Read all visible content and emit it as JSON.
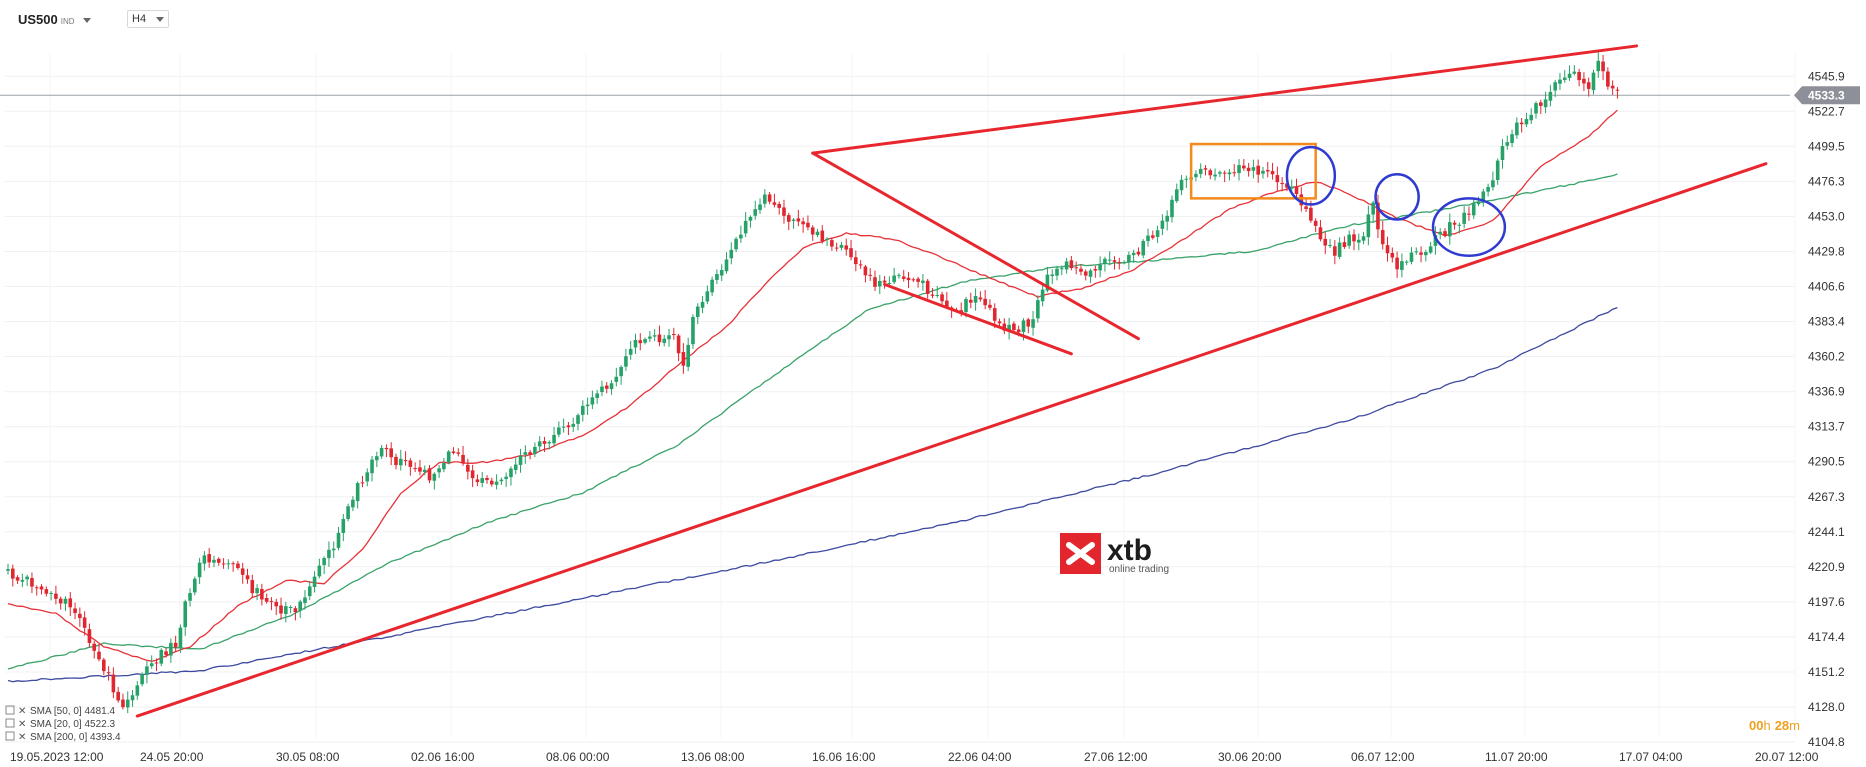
{
  "toolbar": {
    "symbol": "US500",
    "symbol_type": "IND",
    "timeframe": "H4"
  },
  "logo": {
    "brand": "xtb",
    "tagline": "online trading"
  },
  "timer": {
    "hours": "00",
    "h_unit": "h",
    "minutes": "28",
    "m_unit": "m"
  },
  "colors": {
    "up": "#26a269",
    "down": "#e0262f",
    "sma20": "#e63238",
    "sma50": "#3aa26a",
    "sma200": "#3d4aa0",
    "trendline": "#e8262e",
    "box": "#f28a1c",
    "circle": "#2e3ad0",
    "price_tag": "#8e9099"
  },
  "chart_data": {
    "type": "line",
    "instrument": "US500",
    "timeframe": "H4",
    "ylim": [
      4104.8,
      4560
    ],
    "y_ticks": [
      4545.9,
      4522.7,
      4499.5,
      4476.3,
      4453.0,
      4429.8,
      4406.6,
      4383.4,
      4360.2,
      4336.9,
      4313.7,
      4290.5,
      4267.3,
      4244.1,
      4220.9,
      4197.6,
      4174.4,
      4151.2,
      4128.0,
      4104.8
    ],
    "x_ticks": [
      "19.05.2023  12:00",
      "24.05  20:00",
      "30.05  08:00",
      "02.06  16:00",
      "08.06  00:00",
      "13.06  08:00",
      "16.06  16:00",
      "22.06  04:00",
      "27.06  12:00",
      "30.06  20:00",
      "06.07  12:00",
      "11.07  20:00",
      "17.07  04:00",
      "20.07  12:00"
    ],
    "last_price": "4533.3",
    "legend": [
      {
        "label": "SMA [50, 0]",
        "value": "4481.4"
      },
      {
        "label": "SMA [20, 0]",
        "value": "4522.3"
      },
      {
        "label": "SMA [200, 0]",
        "value": "4393.4"
      }
    ],
    "price_anchors": [
      [
        0,
        4218
      ],
      [
        4,
        4212
      ],
      [
        8,
        4202
      ],
      [
        12,
        4198
      ],
      [
        15,
        4185
      ],
      [
        18,
        4162
      ],
      [
        21,
        4148
      ],
      [
        24,
        4126
      ],
      [
        27,
        4145
      ],
      [
        30,
        4158
      ],
      [
        33,
        4165
      ],
      [
        35,
        4170
      ],
      [
        37,
        4196
      ],
      [
        39,
        4213
      ],
      [
        41,
        4228
      ],
      [
        44,
        4222
      ],
      [
        47,
        4225
      ],
      [
        50,
        4210
      ],
      [
        53,
        4200
      ],
      [
        56,
        4194
      ],
      [
        60,
        4190
      ],
      [
        63,
        4205
      ],
      [
        66,
        4228
      ],
      [
        69,
        4240
      ],
      [
        72,
        4268
      ],
      [
        75,
        4285
      ],
      [
        78,
        4300
      ],
      [
        80,
        4292
      ],
      [
        84,
        4288
      ],
      [
        88,
        4280
      ],
      [
        91,
        4292
      ],
      [
        94,
        4298
      ],
      [
        97,
        4282
      ],
      [
        100,
        4275
      ],
      [
        103,
        4280
      ],
      [
        106,
        4290
      ],
      [
        110,
        4298
      ],
      [
        114,
        4308
      ],
      [
        118,
        4318
      ],
      [
        122,
        4332
      ],
      [
        126,
        4342
      ],
      [
        130,
        4366
      ],
      [
        133,
        4372
      ],
      [
        136,
        4373
      ],
      [
        139,
        4376
      ],
      [
        141,
        4352
      ],
      [
        143,
        4384
      ],
      [
        146,
        4404
      ],
      [
        149,
        4420
      ],
      [
        152,
        4438
      ],
      [
        155,
        4455
      ],
      [
        158,
        4466
      ],
      [
        161,
        4460
      ],
      [
        163,
        4452
      ],
      [
        166,
        4445
      ],
      [
        169,
        4440
      ],
      [
        172,
        4436
      ],
      [
        175,
        4432
      ],
      [
        178,
        4420
      ],
      [
        181,
        4408
      ],
      [
        184,
        4410
      ],
      [
        187,
        4415
      ],
      [
        190,
        4412
      ],
      [
        193,
        4400
      ],
      [
        196,
        4396
      ],
      [
        199,
        4392
      ],
      [
        202,
        4402
      ],
      [
        205,
        4390
      ],
      [
        208,
        4380
      ],
      [
        211,
        4378
      ],
      [
        214,
        4386
      ],
      [
        217,
        4412
      ],
      [
        220,
        4422
      ],
      [
        223,
        4418
      ],
      [
        226,
        4416
      ],
      [
        229,
        4424
      ],
      [
        232,
        4420
      ],
      [
        235,
        4428
      ],
      [
        238,
        4438
      ],
      [
        241,
        4450
      ],
      [
        244,
        4470
      ],
      [
        247,
        4482
      ],
      [
        250,
        4481
      ],
      [
        253,
        4482
      ],
      [
        256,
        4484
      ],
      [
        259,
        4484
      ],
      [
        262,
        4483
      ],
      [
        265,
        4476
      ],
      [
        268,
        4470
      ],
      [
        271,
        4458
      ],
      [
        274,
        4440
      ],
      [
        277,
        4430
      ],
      [
        280,
        4438
      ],
      [
        283,
        4442
      ],
      [
        285,
        4460
      ],
      [
        287,
        4432
      ],
      [
        290,
        4418
      ],
      [
        293,
        4426
      ],
      [
        296,
        4432
      ],
      [
        299,
        4442
      ],
      [
        302,
        4448
      ],
      [
        305,
        4455
      ],
      [
        308,
        4468
      ],
      [
        310,
        4480
      ],
      [
        312,
        4500
      ],
      [
        315,
        4512
      ],
      [
        318,
        4522
      ],
      [
        321,
        4532
      ],
      [
        324,
        4543
      ],
      [
        327,
        4548
      ],
      [
        330,
        4541
      ],
      [
        332,
        4554
      ],
      [
        334,
        4540
      ],
      [
        336,
        4533
      ]
    ],
    "sma20_anchors": [
      [
        0,
        4196
      ],
      [
        10,
        4190
      ],
      [
        20,
        4168
      ],
      [
        30,
        4158
      ],
      [
        38,
        4168
      ],
      [
        48,
        4195
      ],
      [
        58,
        4212
      ],
      [
        66,
        4210
      ],
      [
        74,
        4232
      ],
      [
        82,
        4270
      ],
      [
        90,
        4290
      ],
      [
        100,
        4290
      ],
      [
        110,
        4296
      ],
      [
        120,
        4308
      ],
      [
        130,
        4328
      ],
      [
        140,
        4355
      ],
      [
        150,
        4380
      ],
      [
        158,
        4408
      ],
      [
        166,
        4432
      ],
      [
        175,
        4442
      ],
      [
        185,
        4438
      ],
      [
        195,
        4426
      ],
      [
        205,
        4412
      ],
      [
        215,
        4400
      ],
      [
        225,
        4406
      ],
      [
        235,
        4418
      ],
      [
        245,
        4437
      ],
      [
        255,
        4458
      ],
      [
        265,
        4470
      ],
      [
        273,
        4476
      ],
      [
        280,
        4468
      ],
      [
        290,
        4452
      ],
      [
        300,
        4440
      ],
      [
        310,
        4450
      ],
      [
        320,
        4486
      ],
      [
        330,
        4506
      ],
      [
        336,
        4524
      ]
    ],
    "sma50_anchors": [
      [
        0,
        4153
      ],
      [
        20,
        4170
      ],
      [
        40,
        4166
      ],
      [
        60,
        4190
      ],
      [
        80,
        4224
      ],
      [
        100,
        4250
      ],
      [
        120,
        4270
      ],
      [
        140,
        4302
      ],
      [
        160,
        4348
      ],
      [
        180,
        4392
      ],
      [
        200,
        4410
      ],
      [
        220,
        4420
      ],
      [
        240,
        4424
      ],
      [
        260,
        4430
      ],
      [
        280,
        4447
      ],
      [
        300,
        4458
      ],
      [
        320,
        4470
      ],
      [
        336,
        4481
      ]
    ],
    "sma200_anchors": [
      [
        0,
        4145
      ],
      [
        40,
        4152
      ],
      [
        80,
        4175
      ],
      [
        120,
        4200
      ],
      [
        160,
        4225
      ],
      [
        200,
        4252
      ],
      [
        240,
        4283
      ],
      [
        280,
        4318
      ],
      [
        310,
        4352
      ],
      [
        336,
        4393
      ]
    ],
    "trendlines": [
      {
        "name": "upper-resistance",
        "from": [
          168,
          4495
        ],
        "to": [
          340,
          4566
        ]
      },
      {
        "name": "lower-support",
        "from": [
          27,
          4122
        ],
        "to": [
          367,
          4488
        ]
      },
      {
        "name": "flag-upper",
        "from": [
          168,
          4495
        ],
        "to": [
          236,
          4372
        ]
      },
      {
        "name": "flag-lower",
        "from": [
          183,
          4408
        ],
        "to": [
          222,
          4362
        ]
      }
    ],
    "box": {
      "x": [
        247,
        273
      ],
      "y": [
        4465,
        4501
      ]
    },
    "circles": [
      {
        "center": [
          272,
          4480
        ],
        "rx": 5,
        "ry": 19
      },
      {
        "center": [
          290,
          4466
        ],
        "rx": 4.5,
        "ry": 15
      },
      {
        "center": [
          305,
          4446
        ],
        "rx": 7.5,
        "ry": 19
      }
    ]
  }
}
